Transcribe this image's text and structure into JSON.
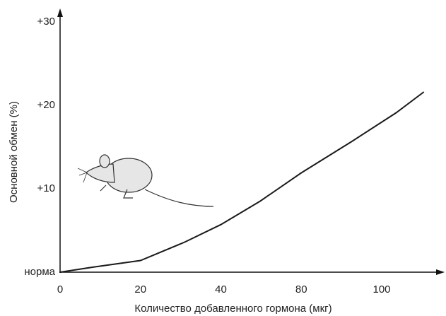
{
  "chart_data": {
    "type": "line",
    "xlabel": "Количество добавленного гормона (мкг)",
    "ylabel": "Основной обмен (%)",
    "x": [
      0,
      8.2,
      20,
      31,
      40,
      59.5,
      80,
      92.7,
      103.6,
      110.5
    ],
    "values": [
      0,
      0.6,
      1.4,
      3.6,
      5.7,
      8.5,
      11.9,
      15.7,
      19.1,
      21.6
    ],
    "color": "#1a1a1a",
    "xlim": [
      0,
      115
    ],
    "xticks": [
      0,
      20,
      40,
      80,
      100
    ],
    "ylim": [
      0,
      31
    ],
    "yticks": [
      {
        "value": 0,
        "label": "норма"
      },
      {
        "value": 10,
        "label": "+10"
      },
      {
        "value": 20,
        "label": "+20"
      },
      {
        "value": 30,
        "label": "+30"
      }
    ],
    "grid": false
  }
}
